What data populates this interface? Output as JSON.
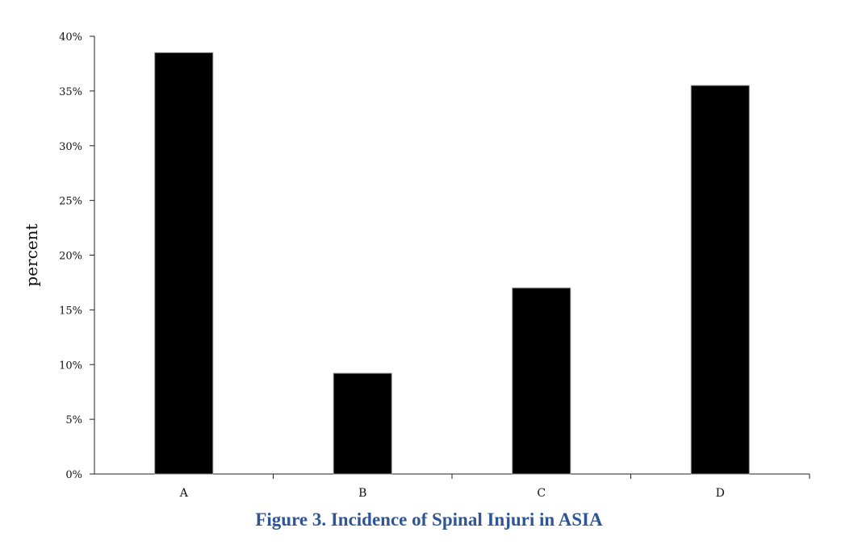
{
  "caption": "Figure 3. Incidence of  Spinal Injuri in ASIA",
  "chart_data": {
    "type": "bar",
    "categories": [
      "A",
      "B",
      "C",
      "D"
    ],
    "values": [
      38.5,
      9.2,
      17.0,
      35.5
    ],
    "ylabel": "percent",
    "xlabel": "",
    "ylim": [
      0,
      40
    ],
    "yticks": [
      "0%",
      "5%",
      "10%",
      "15%",
      "20%",
      "25%",
      "30%",
      "35%",
      "40%"
    ],
    "grid": false,
    "legend": "none",
    "bar_color": "#000000"
  }
}
